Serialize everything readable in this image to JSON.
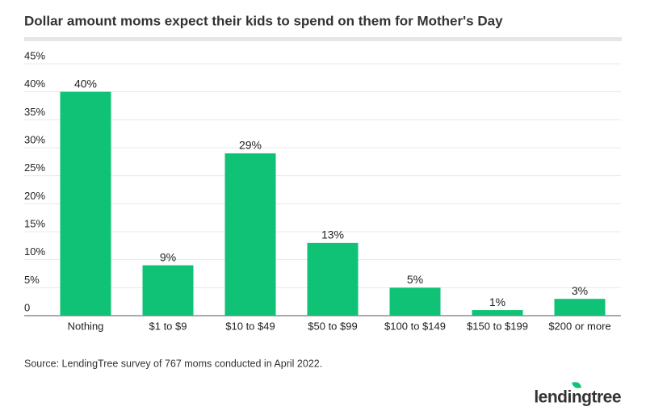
{
  "chart_data": {
    "type": "bar",
    "title": "Dollar amount moms expect their kids to spend on them for Mother's Day",
    "categories": [
      "Nothing",
      "$1 to $9",
      "$10 to $49",
      "$50 to $99",
      "$100 to $149",
      "$150 to $199",
      "$200 or more"
    ],
    "values": [
      40,
      9,
      29,
      13,
      5,
      1,
      3
    ],
    "value_labels": [
      "40%",
      "9%",
      "29%",
      "13%",
      "5%",
      "1%",
      "3%"
    ],
    "color": "#0fc275",
    "ylim": [
      0,
      45
    ],
    "yticks": [
      0,
      {
        "value": 5,
        "label": "5%"
      },
      {
        "value": 10,
        "label": "10%"
      },
      {
        "value": 15,
        "label": "15%"
      },
      {
        "value": 20,
        "label": "20%"
      },
      {
        "value": 25,
        "label": "25%"
      },
      {
        "value": 30,
        "label": "30%"
      },
      {
        "value": 35,
        "label": "35%"
      },
      {
        "value": 40,
        "label": "40%"
      },
      {
        "value": 45,
        "label": "45%"
      }
    ],
    "grid": true,
    "source": "Source: LendingTree survey of 767 moms conducted in April 2022.",
    "logo": "lendingtree"
  }
}
